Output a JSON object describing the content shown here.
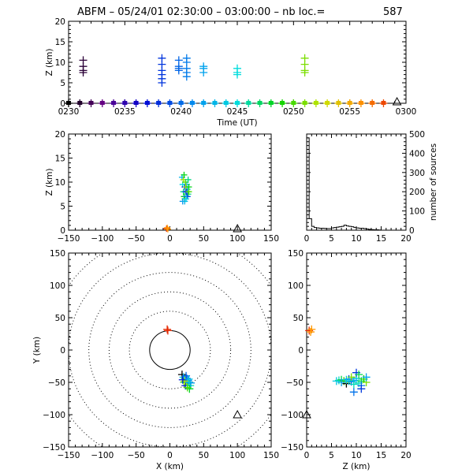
{
  "title": "ABFM – 05/24/01 02:30:00 – 03:00:00 – nb loc.=",
  "count": "587",
  "chart_data": [
    {
      "id": "time_height",
      "type": "scatter",
      "xlabel": "Time (UT)",
      "ylabel": "Z (km)",
      "xlim_minutes": [
        0,
        30
      ],
      "ylim": [
        0,
        20
      ],
      "xtick_labels": [
        "0230",
        "0235",
        "0240",
        "0245",
        "0250",
        "0255",
        "0300"
      ],
      "ytick_labels": [
        "0",
        "5",
        "10",
        "15",
        "20"
      ],
      "reference_marker": {
        "shape": "triangle",
        "t_minutes": 29.2,
        "z": 0
      },
      "series": [
        {
          "points": [
            [
              0,
              0
            ],
            [
              1,
              0
            ],
            [
              2,
              0
            ],
            [
              3,
              0
            ],
            [
              4,
              0
            ],
            [
              5,
              0
            ],
            [
              6,
              0
            ],
            [
              7,
              0
            ],
            [
              8,
              0
            ],
            [
              9,
              0
            ],
            [
              10,
              0
            ],
            [
              11,
              0
            ],
            [
              12,
              0
            ],
            [
              13,
              0
            ],
            [
              14,
              0
            ],
            [
              15,
              0
            ],
            [
              16,
              0
            ],
            [
              17,
              0
            ],
            [
              18,
              0
            ],
            [
              19,
              0
            ],
            [
              20,
              0
            ],
            [
              21,
              0
            ],
            [
              22,
              0
            ],
            [
              23,
              0
            ],
            [
              24,
              0
            ],
            [
              25,
              0
            ],
            [
              26,
              0
            ],
            [
              27,
              0
            ],
            [
              28,
              0
            ]
          ]
        },
        {
          "points": [
            [
              1.3,
              10.5
            ],
            [
              1.3,
              9
            ],
            [
              1.3,
              8
            ],
            [
              1.3,
              7.5
            ]
          ]
        },
        {
          "points": [
            [
              8.3,
              11
            ],
            [
              8.3,
              9.5
            ],
            [
              8.3,
              8
            ],
            [
              8.3,
              7
            ],
            [
              8.3,
              6
            ],
            [
              8.3,
              5
            ]
          ]
        },
        {
          "points": [
            [
              9.8,
              10.5
            ],
            [
              9.8,
              9
            ],
            [
              9.8,
              8.5
            ],
            [
              9.8,
              8
            ]
          ]
        },
        {
          "points": [
            [
              10.5,
              11
            ],
            [
              10.5,
              10
            ],
            [
              10.5,
              8.5
            ],
            [
              10.5,
              7.5
            ],
            [
              10.5,
              6.5
            ]
          ]
        },
        {
          "points": [
            [
              12,
              9
            ],
            [
              12,
              8.5
            ],
            [
              12,
              7.5
            ]
          ]
        },
        {
          "points": [
            [
              15,
              8.5
            ],
            [
              15,
              7.5
            ],
            [
              15,
              7
            ]
          ]
        },
        {
          "points": [
            [
              21,
              11
            ],
            [
              21,
              9.5
            ],
            [
              21,
              8
            ],
            [
              21,
              7.5
            ]
          ]
        }
      ]
    },
    {
      "id": "x_height",
      "type": "scatter",
      "xlabel": "",
      "ylabel": "Z (km)",
      "xlim": [
        -150,
        150
      ],
      "ylim": [
        0,
        20
      ],
      "xtick_labels": [
        "−150",
        "−100",
        "−50",
        "0",
        "50",
        "100",
        "150"
      ],
      "ytick_labels": [
        "0",
        "5",
        "10",
        "15",
        "20"
      ],
      "reference_marker": {
        "shape": "triangle",
        "x": 100,
        "z": 0
      },
      "points": [
        [
          -5,
          0.3
        ],
        [
          -4,
          0.5
        ],
        [
          -3,
          0.2
        ],
        [
          18,
          11
        ],
        [
          19,
          9.5
        ],
        [
          20,
          8
        ],
        [
          21,
          7
        ],
        [
          22,
          6.5
        ],
        [
          20,
          10.5
        ],
        [
          22,
          9
        ],
        [
          23,
          8
        ],
        [
          24,
          7
        ],
        [
          25,
          9.5
        ],
        [
          26,
          8.5
        ],
        [
          27,
          7.5
        ],
        [
          21,
          11.5
        ],
        [
          23,
          10
        ],
        [
          24,
          9
        ],
        [
          25,
          8
        ],
        [
          26,
          7
        ],
        [
          19,
          6
        ],
        [
          22,
          6
        ],
        [
          24,
          6.5
        ],
        [
          27,
          10.5
        ],
        [
          28,
          9
        ],
        [
          28,
          8
        ]
      ]
    },
    {
      "id": "altitude_histogram",
      "type": "area",
      "xlabel": "",
      "ylabel": "number of sources",
      "xlim": [
        0,
        20
      ],
      "ylim": [
        0,
        500
      ],
      "xtick_labels": [
        "0",
        "5",
        "10",
        "15",
        "20"
      ],
      "ytick_labels": [
        "0",
        "100",
        "200",
        "300",
        "400",
        "500"
      ],
      "bins": [
        [
          0,
          0.5,
          480
        ],
        [
          0.5,
          1,
          60
        ],
        [
          1,
          1.5,
          20
        ],
        [
          1.5,
          2,
          14
        ],
        [
          2,
          2.5,
          12
        ],
        [
          2.5,
          3,
          10
        ],
        [
          3,
          3.5,
          10
        ],
        [
          3.5,
          4,
          9
        ],
        [
          4,
          4.5,
          8
        ],
        [
          4.5,
          5,
          8
        ],
        [
          5,
          5.5,
          12
        ],
        [
          5.5,
          6,
          14
        ],
        [
          6,
          6.5,
          16
        ],
        [
          6.5,
          7,
          18
        ],
        [
          7,
          7.5,
          20
        ],
        [
          7.5,
          8,
          26
        ],
        [
          8,
          8.5,
          22
        ],
        [
          8.5,
          9,
          20
        ],
        [
          9,
          9.5,
          18
        ],
        [
          9.5,
          10,
          14
        ],
        [
          10,
          10.5,
          12
        ],
        [
          10.5,
          11,
          10
        ],
        [
          11,
          11.5,
          10
        ],
        [
          11.5,
          12,
          8
        ],
        [
          12,
          12.5,
          6
        ],
        [
          12.5,
          13,
          4
        ],
        [
          13,
          13.5,
          3
        ],
        [
          13.5,
          14,
          2
        ],
        [
          14,
          14.5,
          2
        ],
        [
          14.5,
          15,
          1
        ],
        [
          15,
          20,
          0
        ]
      ]
    },
    {
      "id": "plan_view",
      "type": "scatter",
      "xlabel": "X (km)",
      "ylabel": "Y (km)",
      "xlim": [
        -150,
        150
      ],
      "ylim": [
        -150,
        150
      ],
      "xtick_labels": [
        "−150",
        "−100",
        "−50",
        "0",
        "50",
        "100",
        "150"
      ],
      "ytick_labels": [
        "−150",
        "−100",
        "−50",
        "0",
        "50",
        "100",
        "150"
      ],
      "range_rings_km": [
        30,
        60,
        90,
        120,
        150,
        180
      ],
      "reference_marker": {
        "shape": "triangle",
        "x": 100,
        "y": -100
      },
      "points": [
        [
          -3,
          30
        ],
        [
          -4,
          32
        ],
        [
          18,
          -38
        ],
        [
          20,
          -42
        ],
        [
          22,
          -45
        ],
        [
          21,
          -50
        ],
        [
          24,
          -48
        ],
        [
          26,
          -52
        ],
        [
          23,
          -55
        ],
        [
          25,
          -44
        ],
        [
          27,
          -47
        ],
        [
          28,
          -50
        ],
        [
          30,
          -55
        ],
        [
          29,
          -60
        ],
        [
          26,
          -58
        ],
        [
          22,
          -48
        ],
        [
          19,
          -46
        ],
        [
          24,
          -40
        ],
        [
          31,
          -51
        ],
        [
          28,
          -45
        ]
      ]
    },
    {
      "id": "height_y",
      "type": "scatter",
      "xlabel": "Z (km)",
      "ylabel": "",
      "xlim": [
        0,
        20
      ],
      "ylim": [
        -150,
        150
      ],
      "xtick_labels": [
        "0",
        "5",
        "10",
        "15",
        "20"
      ],
      "ytick_labels": [
        "−150",
        "−100",
        "−50",
        "0",
        "50",
        "100",
        "150"
      ],
      "reference_marker": {
        "shape": "triangle",
        "z": 0,
        "y": -100
      },
      "points": [
        [
          0.5,
          30
        ],
        [
          0.8,
          28
        ],
        [
          1,
          32
        ],
        [
          6,
          -48
        ],
        [
          6.5,
          -47
        ],
        [
          7,
          -46
        ],
        [
          7.5,
          -48
        ],
        [
          8,
          -50
        ],
        [
          8.5,
          -45
        ],
        [
          9,
          -49
        ],
        [
          9.5,
          -47
        ],
        [
          10,
          -44
        ],
        [
          10.5,
          -51
        ],
        [
          11,
          -48
        ],
        [
          8,
          -52
        ],
        [
          9,
          -42
        ],
        [
          10,
          -35
        ],
        [
          11,
          -55
        ],
        [
          7,
          -50
        ],
        [
          8.5,
          -48
        ],
        [
          9.5,
          -53
        ],
        [
          10.5,
          -38
        ],
        [
          11.5,
          -45
        ],
        [
          12,
          -50
        ],
        [
          11,
          -60
        ],
        [
          9.5,
          -65
        ],
        [
          12,
          -42
        ],
        [
          8,
          -46
        ]
      ]
    }
  ]
}
